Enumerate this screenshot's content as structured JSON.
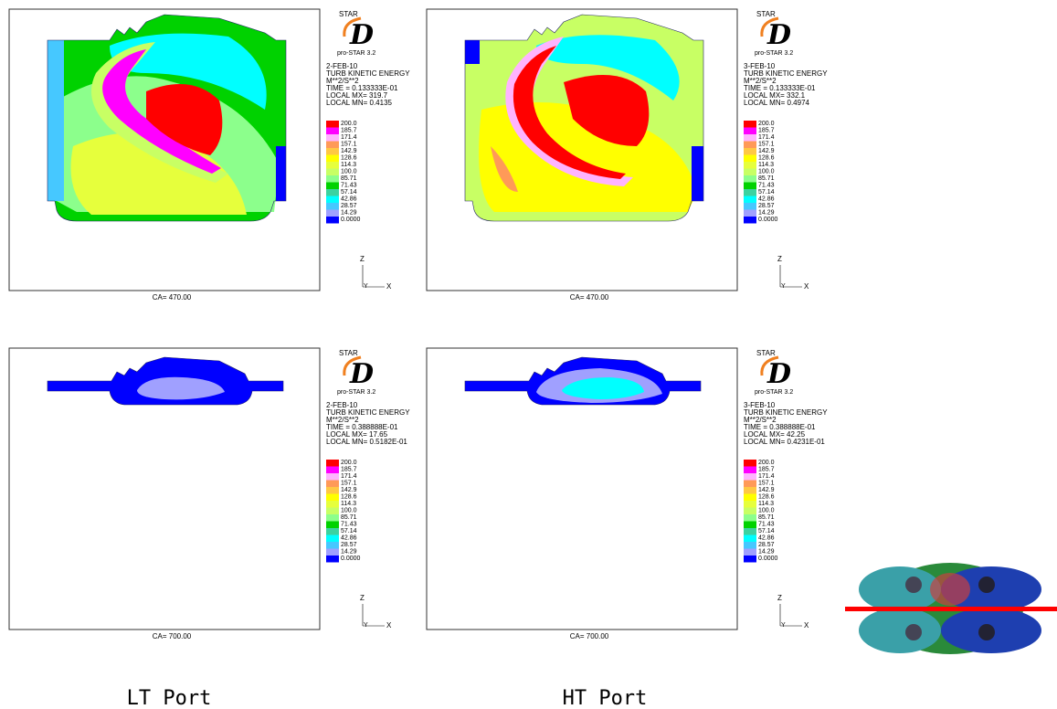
{
  "logo": {
    "star": "STAR",
    "letter": "D",
    "version": "pro-STAR 3.2"
  },
  "quantity": "TURB KINETIC ENERGY",
  "units": "M**2/S**2",
  "legend_levels": [
    "200.0",
    "185.7",
    "171.4",
    "157.1",
    "142.9",
    "128.6",
    "114.3",
    "100.0",
    "85.71",
    "71.43",
    "57.14",
    "42.86",
    "28.57",
    "14.29",
    "0.0000"
  ],
  "legend_colors": [
    "#ff0000",
    "#ff00ff",
    "#ffb4ff",
    "#ff9a58",
    "#ffc844",
    "#ffff00",
    "#e6ff3c",
    "#c8ff64",
    "#8cff8c",
    "#00d200",
    "#3cd2a0",
    "#00ffff",
    "#46c8ff",
    "#a0a0ff",
    "#0000ff"
  ],
  "axes": {
    "z": "Z",
    "y": "Y",
    "x": "X"
  },
  "panels": [
    {
      "date": "2-FEB-10",
      "time": "TIME = 0.133333E-01",
      "local_mx": "LOCAL MX= 319.7",
      "local_mn": "LOCAL MN= 0.4135",
      "ca": "CA= 470.00"
    },
    {
      "date": "3-FEB-10",
      "time": "TIME = 0.133333E-01",
      "local_mx": "LOCAL MX= 332.1",
      "local_mn": "LOCAL MN= 0.4974",
      "ca": "CA= 470.00"
    },
    {
      "date": "2-FEB-10",
      "time": "TIME = 0.388888E-01",
      "local_mx": "LOCAL MX= 17.65",
      "local_mn": "LOCAL MN= 0.5182E-01",
      "ca": "CA= 700.00"
    },
    {
      "date": "3-FEB-10",
      "time": "TIME = 0.388888E-01",
      "local_mx": "LOCAL MX= 42.25",
      "local_mn": "LOCAL MN= 0.4231E-01",
      "ca": "CA= 700.00"
    }
  ],
  "captions": [
    "LT Port",
    "HT Port"
  ]
}
